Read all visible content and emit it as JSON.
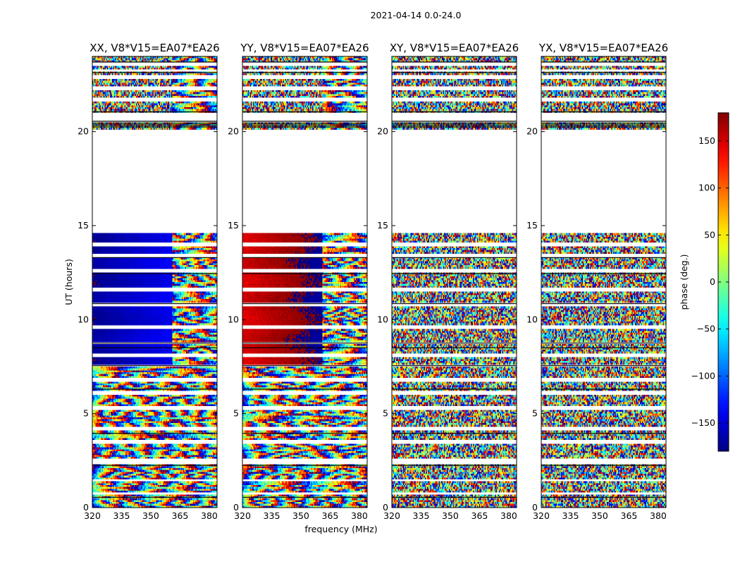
{
  "suptitle": "2021-04-14 0.0-24.0",
  "xlabel": "frequency (MHz)",
  "ylabel": "UT (hours)",
  "colorbar": {
    "label": "phase (deg.)",
    "range": [
      -180,
      180
    ],
    "ticks": [
      150,
      100,
      50,
      0,
      -50,
      -100,
      -150
    ],
    "tick_labels": [
      "150",
      "100",
      "50",
      "0",
      "−50",
      "−100",
      "−150"
    ],
    "colormap": "jet"
  },
  "chart_data": [
    {
      "type": "heatmap",
      "title": "XX, V8*V15=EA07*EA26",
      "xlim": [
        320,
        384
      ],
      "ylim": [
        0,
        24
      ],
      "xticks": [
        320,
        335,
        350,
        365,
        380
      ],
      "yticks": [
        0,
        5,
        10,
        15,
        20
      ],
      "value_range_deg": [
        -180,
        180
      ]
    },
    {
      "type": "heatmap",
      "title": "YY, V8*V15=EA07*EA26",
      "xlim": [
        320,
        384
      ],
      "ylim": [
        0,
        24
      ],
      "xticks": [
        320,
        335,
        350,
        365,
        380
      ],
      "yticks": [
        0,
        5,
        10,
        15,
        20
      ],
      "value_range_deg": [
        -180,
        180
      ]
    },
    {
      "type": "heatmap",
      "title": "XY, V8*V15=EA07*EA26",
      "xlim": [
        320,
        384
      ],
      "ylim": [
        0,
        24
      ],
      "xticks": [
        320,
        335,
        350,
        365,
        380
      ],
      "yticks": [
        0,
        5,
        10,
        15,
        20
      ],
      "value_range_deg": [
        -180,
        180
      ]
    },
    {
      "type": "heatmap",
      "title": "YX, V8*V15=EA07*EA26",
      "xlim": [
        320,
        384
      ],
      "ylim": [
        0,
        24
      ],
      "xticks": [
        320,
        335,
        350,
        365,
        380
      ],
      "yticks": [
        0,
        5,
        10,
        15,
        20
      ],
      "value_range_deg": [
        -180,
        180
      ]
    }
  ]
}
